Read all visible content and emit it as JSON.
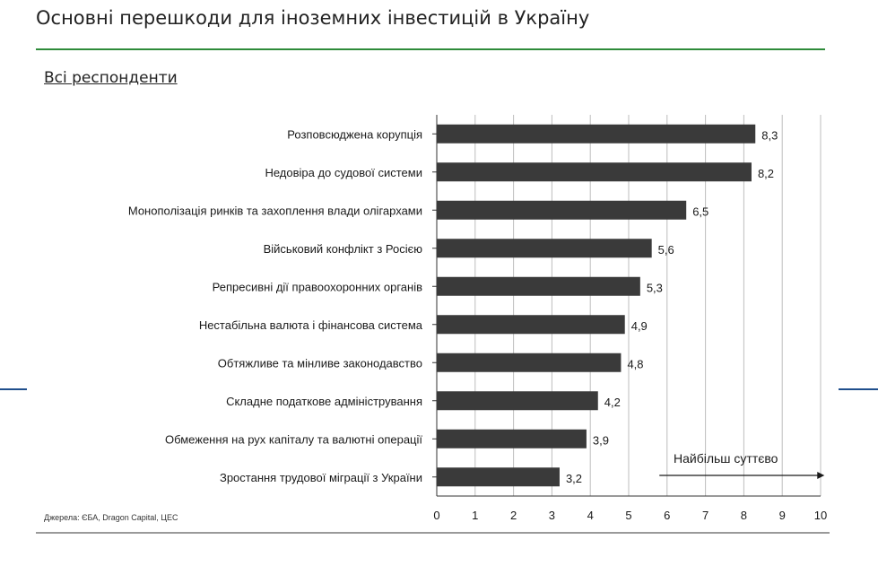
{
  "title": "Основні перешкоди для іноземних інвестицій в Україну",
  "subtitle": "Всі респонденти",
  "source": "Джерела: ЄБА, Dragon Capital, ЦЕС",
  "colors": {
    "bar": "#3a3a3a",
    "accent_green": "#2e8b3a",
    "accent_blue": "#1f4e8c",
    "grid": "#bdbdbd"
  },
  "chart_data": {
    "type": "bar",
    "orientation": "horizontal",
    "categories": [
      "Розповсюджена корупція",
      "Недовіра до судової системи",
      "Монополізація ринків та захоплення влади олігархами",
      "Військовий конфлікт з Росією",
      "Репресивні дії правоохоронних органів",
      "Нестабільна валюта і фінансова система",
      "Обтяжливе та мінливе законодавство",
      "Складне податкове адміністрування",
      "Обмеження на рух капіталу та валютні операції",
      "Зростання трудової міграції з України"
    ],
    "values": [
      8.3,
      8.2,
      6.5,
      5.6,
      5.3,
      4.9,
      4.8,
      4.2,
      3.9,
      3.2
    ],
    "value_labels": [
      "8,3",
      "8,2",
      "6,5",
      "5,6",
      "5,3",
      "4,9",
      "4,8",
      "4,2",
      "3,9",
      "3,2"
    ],
    "xlim": [
      0,
      10
    ],
    "xticks": [
      "0",
      "1",
      "2",
      "3",
      "4",
      "5",
      "6",
      "7",
      "8",
      "9",
      "10"
    ],
    "grid": true,
    "annotation": {
      "text": "Найбільш суттєво",
      "arrow_from": 5.8,
      "arrow_to": 10.1
    }
  }
}
